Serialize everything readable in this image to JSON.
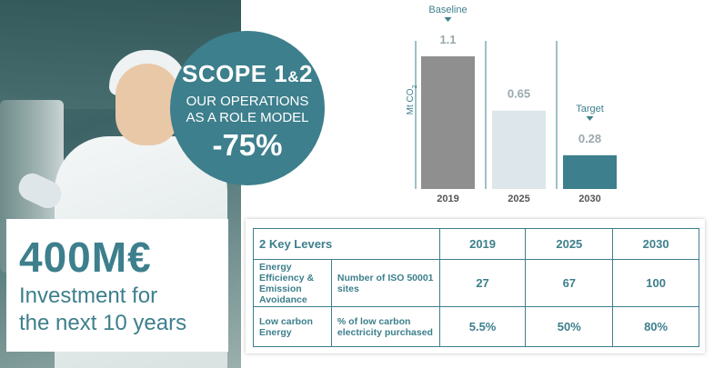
{
  "colors": {
    "teal": "#3d7f8c",
    "bar_2019": "#8f8f8f",
    "bar_2025": "#dde6ea",
    "bar_2030": "#3d7f8c"
  },
  "circle": {
    "scope_main": "SCOPE 1",
    "scope_amp": "&",
    "scope_num": "2",
    "line1": "OUR OPERATIONS",
    "line2": "AS A ROLE MODEL",
    "percent": "-75%"
  },
  "investment": {
    "amount": "400M€",
    "line1": "Investment for",
    "line2": "the next 10 years"
  },
  "chart_data": {
    "type": "bar",
    "categories": [
      "2019",
      "2025",
      "2030"
    ],
    "values": [
      1.1,
      0.65,
      0.28
    ],
    "value_labels": [
      "1.1",
      "0.65",
      "0.28"
    ],
    "ylabel": "Mt CO",
    "ylabel_sub": "2",
    "annotations": [
      {
        "category": "2019",
        "text": "Baseline"
      },
      {
        "category": "2030",
        "text": "Target"
      }
    ],
    "ylim": [
      0,
      1.1
    ]
  },
  "table": {
    "header": {
      "title": "2 Key Levers",
      "years": [
        "2019",
        "2025",
        "2030"
      ]
    },
    "rows": [
      {
        "lever": "Energy Efficiency & Emission Avoidance",
        "metric": "Number of ISO 50001 sites",
        "values": [
          "27",
          "67",
          "100"
        ]
      },
      {
        "lever": "Low carbon Energy",
        "metric": "% of low carbon electricity purchased",
        "values": [
          "5.5%",
          "50%",
          "80%"
        ]
      }
    ]
  }
}
